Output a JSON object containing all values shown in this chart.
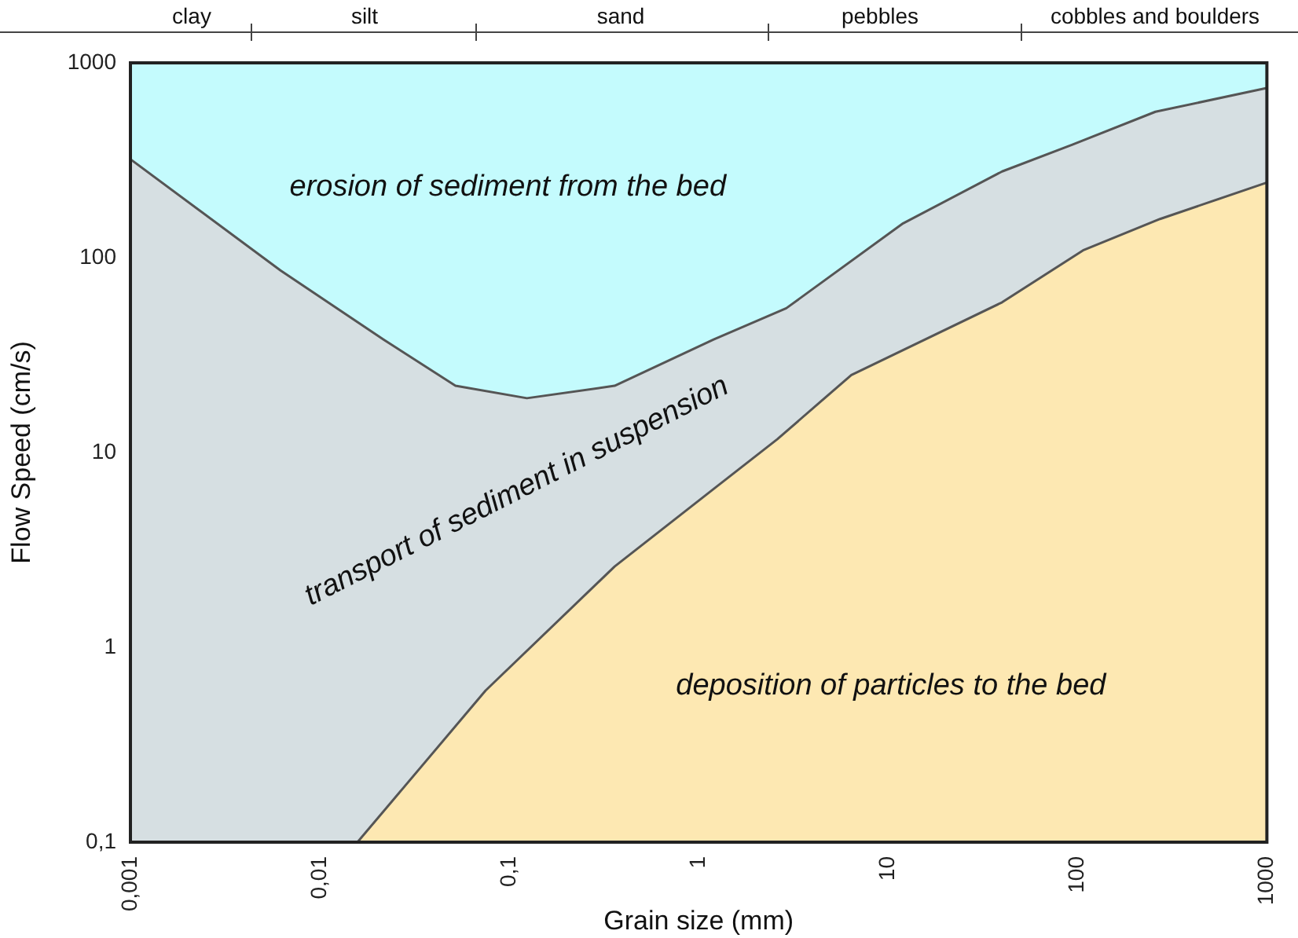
{
  "chart_data": {
    "type": "area",
    "xlabel": "Grain size (mm)",
    "ylabel": "Flow Speed (cm/s)",
    "log": "xy",
    "xlim": [
      0.001,
      1000
    ],
    "ylim": [
      0.1,
      1000
    ],
    "xticks": [
      {
        "value": 0.001,
        "label": "0,001"
      },
      {
        "value": 0.01,
        "label": "0,01"
      },
      {
        "value": 0.1,
        "label": "0,1"
      },
      1,
      10,
      100,
      1000
    ],
    "yticks": [
      {
        "value": 0.1,
        "label": "0,1"
      },
      1,
      10,
      100,
      1000
    ],
    "series": [
      {
        "type": "area",
        "color": "#d6dfe2",
        "x": [
          0.001,
          0.0062,
          0.0217,
          0.052,
          0.124,
          0.36,
          1.2,
          2.9,
          12,
          40,
          94,
          258,
          1000
        ],
        "values": [
          320,
          86,
          38,
          22,
          19,
          22,
          38,
          55,
          150,
          277,
          380,
          561,
          743
        ]
      },
      {
        "type": "area",
        "color": "#fde8b2",
        "x": [
          0.0158,
          0.075,
          0.36,
          1.2,
          2.6,
          6.4,
          40,
          107,
          273,
          1000
        ],
        "values": [
          0.1,
          0.6,
          2.6,
          6.5,
          11.7,
          25,
          59,
          109,
          158,
          243
        ]
      }
    ],
    "bands": [
      {
        "axis": "y",
        "from": 0.1,
        "to": 1000,
        "color": "#c4fbfd"
      }
    ],
    "annotations": [
      "clay",
      "silt",
      "sand",
      "pebbles",
      "cobbles and boulders",
      "erosion of sediment from the bed",
      "transport of sediment in suspension",
      "deposition of particles to the bed"
    ],
    "grid": false,
    "legend": false
  }
}
